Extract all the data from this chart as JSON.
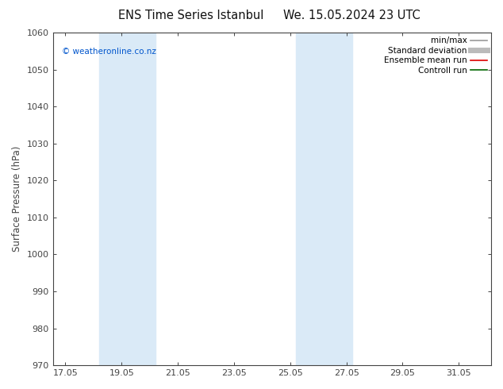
{
  "title_left": "ENS Time Series Istanbul",
  "title_right": "We. 15.05.2024 23 UTC",
  "ylabel": "Surface Pressure (hPa)",
  "ylim": [
    970,
    1060
  ],
  "yticks": [
    970,
    980,
    990,
    1000,
    1010,
    1020,
    1030,
    1040,
    1050,
    1060
  ],
  "xlim_start": 16.6,
  "xlim_end": 32.2,
  "xtick_labels": [
    "17.05",
    "19.05",
    "21.05",
    "23.05",
    "25.05",
    "27.05",
    "29.05",
    "31.05"
  ],
  "xtick_positions": [
    17.05,
    19.05,
    21.05,
    23.05,
    25.05,
    27.05,
    29.05,
    31.05
  ],
  "shaded_regions": [
    {
      "xstart": 18.25,
      "xend": 20.25
    },
    {
      "xstart": 25.25,
      "xend": 27.25
    }
  ],
  "shaded_color": "#daeaf7",
  "watermark": "© weatheronline.co.nz",
  "watermark_color": "#0055cc",
  "legend_entries": [
    {
      "label": "min/max",
      "color": "#999999",
      "lw": 1.2,
      "style": "-"
    },
    {
      "label": "Standard deviation",
      "color": "#bbbbbb",
      "lw": 5,
      "style": "-"
    },
    {
      "label": "Ensemble mean run",
      "color": "#dd0000",
      "lw": 1.2,
      "style": "-"
    },
    {
      "label": "Controll run",
      "color": "#006600",
      "lw": 1.2,
      "style": "-"
    }
  ],
  "background_color": "#ffffff",
  "spine_color": "#444444",
  "tick_color": "#444444",
  "title_fontsize": 10.5,
  "label_fontsize": 8.5,
  "tick_fontsize": 8,
  "legend_fontsize": 7.5,
  "watermark_fontsize": 7.5
}
